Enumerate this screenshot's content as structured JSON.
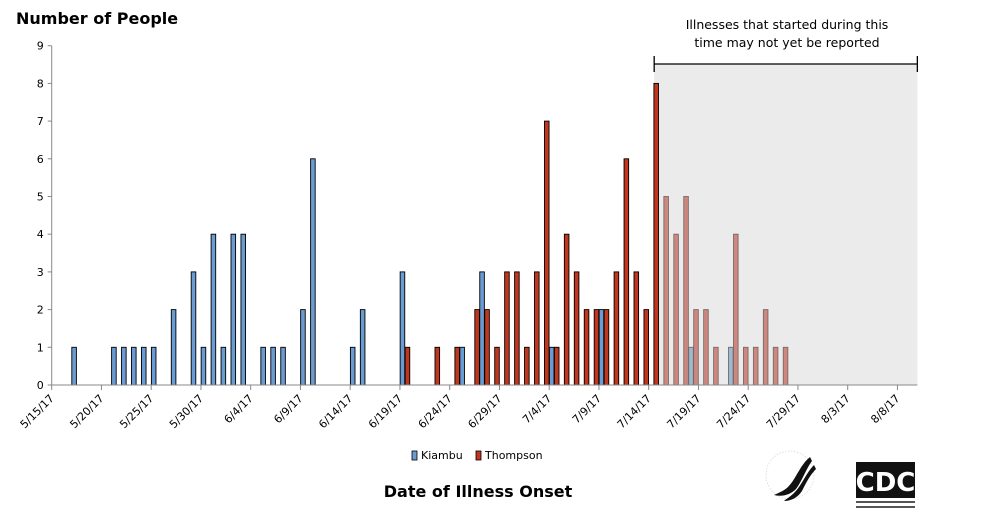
{
  "chart_data": {
    "type": "bar",
    "ylabel": "Number of People",
    "xlabel": "Date of Illness Onset",
    "ylim": [
      0,
      9
    ],
    "yticks": [
      "0",
      "1",
      "2",
      "3",
      "4",
      "5",
      "6",
      "7",
      "8",
      "9"
    ],
    "x_start": "5/15/17",
    "x_end": "8/9/17",
    "xtick_labels": [
      "5/15/17",
      "5/20/17",
      "5/25/17",
      "5/30/17",
      "6/4/17",
      "6/9/17",
      "6/14/17",
      "6/19/17",
      "6/24/17",
      "6/29/17",
      "7/4/17",
      "7/9/17",
      "7/14/17",
      "7/19/17",
      "7/24/17",
      "7/29/17",
      "8/3/17",
      "8/8/17"
    ],
    "grid": false,
    "legend_placement": "bottom",
    "annotation": {
      "line1": "Illnesses that started during this",
      "line2": "time may not yet be reported",
      "shaded_from": "7/14/17",
      "shade_color": "#ebebeb"
    },
    "series": [
      {
        "name": "Kiambu",
        "color": "#6a9bd1",
        "faded_color": "#9dbad3",
        "points": [
          [
            "5/17/17",
            1
          ],
          [
            "5/21/17",
            1
          ],
          [
            "5/22/17",
            1
          ],
          [
            "5/23/17",
            1
          ],
          [
            "5/24/17",
            1
          ],
          [
            "5/25/17",
            1
          ],
          [
            "5/27/17",
            2
          ],
          [
            "5/29/17",
            3
          ],
          [
            "5/30/17",
            1
          ],
          [
            "5/31/17",
            4
          ],
          [
            "6/1/17",
            1
          ],
          [
            "6/2/17",
            4
          ],
          [
            "6/3/17",
            4
          ],
          [
            "6/5/17",
            1
          ],
          [
            "6/6/17",
            1
          ],
          [
            "6/7/17",
            1
          ],
          [
            "6/9/17",
            2
          ],
          [
            "6/10/17",
            6
          ],
          [
            "6/14/17",
            1
          ],
          [
            "6/15/17",
            2
          ],
          [
            "6/19/17",
            3
          ],
          [
            "6/25/17",
            1
          ],
          [
            "6/27/17",
            3
          ],
          [
            "7/4/17",
            1
          ],
          [
            "7/9/17",
            2
          ],
          [
            "7/18/17",
            1
          ],
          [
            "7/22/17",
            1
          ]
        ]
      },
      {
        "name": "Thompson",
        "color": "#c0361f",
        "faded_color": "#cc877f",
        "points": [
          [
            "6/19/17",
            1
          ],
          [
            "6/22/17",
            1
          ],
          [
            "6/24/17",
            1
          ],
          [
            "6/26/17",
            2
          ],
          [
            "6/27/17",
            2
          ],
          [
            "6/28/17",
            1
          ],
          [
            "6/29/17",
            3
          ],
          [
            "6/30/17",
            3
          ],
          [
            "7/1/17",
            1
          ],
          [
            "7/2/17",
            3
          ],
          [
            "7/3/17",
            7
          ],
          [
            "7/4/17",
            1
          ],
          [
            "7/5/17",
            4
          ],
          [
            "7/6/17",
            3
          ],
          [
            "7/7/17",
            2
          ],
          [
            "7/8/17",
            2
          ],
          [
            "7/9/17",
            2
          ],
          [
            "7/10/17",
            3
          ],
          [
            "7/11/17",
            6
          ],
          [
            "7/12/17",
            3
          ],
          [
            "7/13/17",
            2
          ],
          [
            "7/14/17",
            8
          ],
          [
            "7/15/17",
            5
          ],
          [
            "7/16/17",
            4
          ],
          [
            "7/17/17",
            5
          ],
          [
            "7/18/17",
            2
          ],
          [
            "7/19/17",
            2
          ],
          [
            "7/20/17",
            1
          ],
          [
            "7/22/17",
            4
          ],
          [
            "7/23/17",
            1
          ],
          [
            "7/24/17",
            1
          ],
          [
            "7/25/17",
            2
          ],
          [
            "7/26/17",
            1
          ],
          [
            "7/27/17",
            1
          ]
        ]
      }
    ]
  },
  "logos": {
    "hhs": "Department of Health & Human Services USA",
    "cdc": "CDC",
    "cdc_sub": "Centers for Disease Control and Prevention"
  }
}
